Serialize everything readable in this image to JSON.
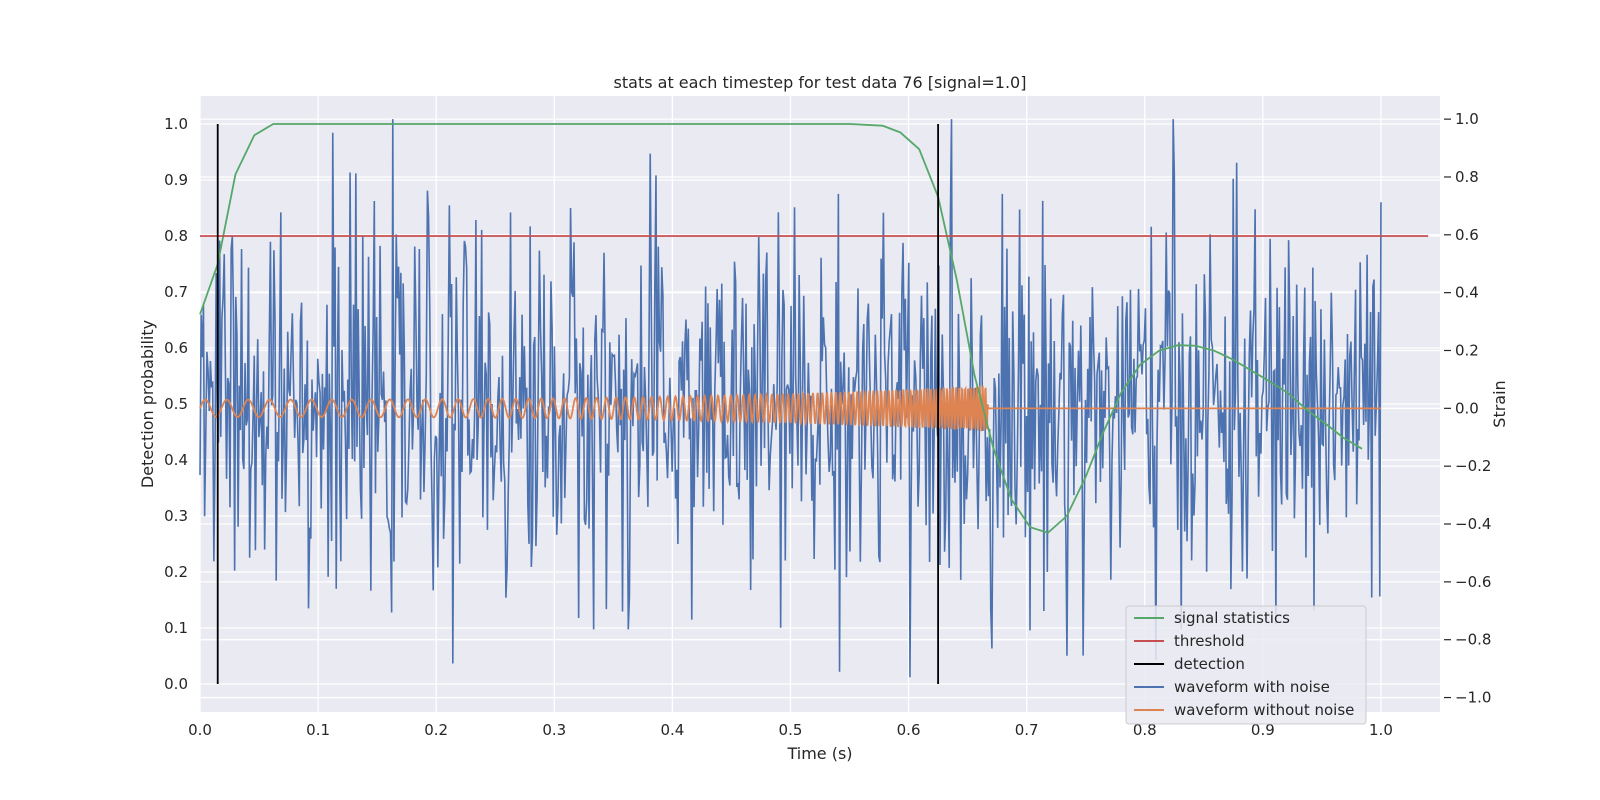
{
  "chart_data": {
    "type": "line",
    "title": "stats at each timestep for test data 76 [signal=1.0]",
    "xlabel": "Time (s)",
    "ylabel": "Detection probability",
    "ylabel_right": "Strain",
    "xlim": [
      0.0,
      1.05
    ],
    "ylim": [
      -0.05,
      1.05
    ],
    "ylim_right": [
      -1.05,
      1.08
    ],
    "xticks": [
      "0.0",
      "0.1",
      "0.2",
      "0.3",
      "0.4",
      "0.5",
      "0.6",
      "0.7",
      "0.8",
      "0.9",
      "1.0"
    ],
    "yticks": [
      "0.0",
      "0.1",
      "0.2",
      "0.3",
      "0.4",
      "0.5",
      "0.6",
      "0.7",
      "0.8",
      "0.9",
      "1.0"
    ],
    "yticks_right": [
      "−1.0",
      "−0.8",
      "−0.6",
      "−0.4",
      "−0.2",
      "0.0",
      "0.2",
      "0.4",
      "0.6",
      "0.8",
      "1.0"
    ],
    "grid": true,
    "legend_position": "lower-right",
    "legend": [
      {
        "label": "signal statistics",
        "color": "#55a868"
      },
      {
        "label": "threshold",
        "color": "#c44e52"
      },
      {
        "label": "detection",
        "color": "#000000"
      },
      {
        "label": "waveform with noise",
        "color": "#4c72b0"
      },
      {
        "label": "waveform without noise",
        "color": "#dd8452"
      }
    ],
    "series": [
      {
        "name": "signal statistics",
        "axis": "left",
        "color": "#55a868",
        "x": [
          0.0,
          0.015,
          0.03,
          0.046,
          0.062,
          0.08,
          0.15,
          0.3,
          0.45,
          0.55,
          0.578,
          0.593,
          0.609,
          0.625,
          0.641,
          0.656,
          0.672,
          0.687,
          0.703,
          0.718,
          0.734,
          0.75,
          0.765,
          0.78,
          0.796,
          0.812,
          0.828,
          0.843,
          0.859,
          0.874,
          0.89,
          0.906,
          0.921,
          0.937,
          0.953,
          0.968,
          0.984
        ],
        "y": [
          0.66,
          0.75,
          0.91,
          0.98,
          1.0,
          1.0,
          1.0,
          1.0,
          1.0,
          1.0,
          0.997,
          0.985,
          0.955,
          0.87,
          0.72,
          0.55,
          0.42,
          0.33,
          0.28,
          0.27,
          0.3,
          0.37,
          0.45,
          0.52,
          0.57,
          0.595,
          0.605,
          0.604,
          0.595,
          0.58,
          0.56,
          0.54,
          0.52,
          0.49,
          0.465,
          0.44,
          0.42
        ]
      },
      {
        "name": "threshold",
        "axis": "left",
        "color": "#c44e52",
        "x": [
          0.0,
          1.04
        ],
        "y": [
          0.8,
          0.8
        ]
      },
      {
        "name": "detection",
        "axis": "left",
        "color": "#000000",
        "segments": [
          {
            "x": 0.015,
            "y": [
              0.0,
              1.0
            ]
          },
          {
            "x": 0.625,
            "y": [
              0.0,
              1.0
            ]
          }
        ]
      },
      {
        "name": "waveform with noise",
        "axis": "right",
        "color": "#4c72b0",
        "x_range": [
          0.0,
          1.0
        ],
        "amplitude": 0.31,
        "max_peak": 1.0,
        "min_trough": -0.93
      },
      {
        "name": "waveform without noise",
        "axis": "right",
        "color": "#dd8452",
        "x_range": [
          0.0,
          1.0
        ],
        "chirp_end": 0.667,
        "start_amplitude": 0.03,
        "end_amplitude": 0.08,
        "start_frequency_hz": 55,
        "end_frequency_hz": 260
      }
    ]
  }
}
